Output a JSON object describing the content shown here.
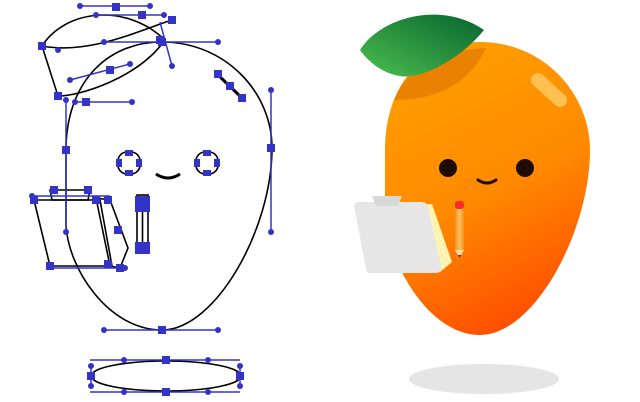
{
  "scene": {
    "colors": {
      "background": "#ffffff",
      "path_stroke": "#000000",
      "anchor": "#3333c6",
      "mango_light": "#ffa000",
      "mango_dark": "#ff5a00",
      "leaf_light": "#43b24a",
      "leaf_dark": "#0b6e34",
      "clipboard": "#e6e6e6",
      "paper": "#fff6b8",
      "pencil": "#f7a23a",
      "eraser": "#ff2a2a",
      "shadow": "#e4e4e4",
      "eye": "#1f0b08"
    }
  }
}
